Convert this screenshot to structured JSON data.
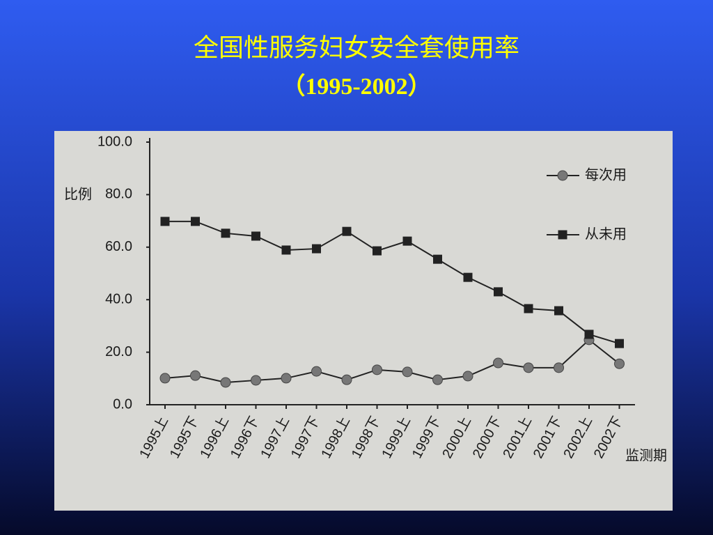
{
  "chart_data": {
    "type": "line",
    "title": "全国性服务妇女安全套使用率",
    "subtitle": "（1995-2002）",
    "y_label": "比例",
    "x_label": "监测期",
    "categories": [
      "1995上",
      "1995下",
      "1996上",
      "1996下",
      "1997上",
      "1997下",
      "1998上",
      "1998下",
      "1999上",
      "1999下",
      "2000上",
      "2000下",
      "2001上",
      "2001下",
      "2002上",
      "2002下"
    ],
    "series": [
      {
        "name": "每次用",
        "color": "#777777",
        "marker": "circle",
        "values": [
          10.1,
          11.1,
          8.5,
          9.3,
          10.1,
          12.7,
          9.5,
          13.3,
          12.5,
          9.5,
          10.9,
          15.9,
          14.1,
          14.1,
          24.7,
          15.6
        ]
      },
      {
        "name": "从未用",
        "color": "#222222",
        "marker": "square",
        "values": [
          69.8,
          69.8,
          65.3,
          64.2,
          58.9,
          59.4,
          66.0,
          58.6,
          62.3,
          55.4,
          48.5,
          43.0,
          36.6,
          35.8,
          26.8,
          23.3
        ]
      }
    ],
    "ylim": [
      0,
      100
    ],
    "yticks": [
      {
        "value": 0,
        "label": "0.0"
      },
      {
        "value": 20,
        "label": "20.0"
      },
      {
        "value": 40,
        "label": "40.0"
      },
      {
        "value": 60,
        "label": "60.0"
      },
      {
        "value": 80,
        "label": "80.0"
      },
      {
        "value": 100,
        "label": "100.0"
      }
    ],
    "grid": false
  }
}
